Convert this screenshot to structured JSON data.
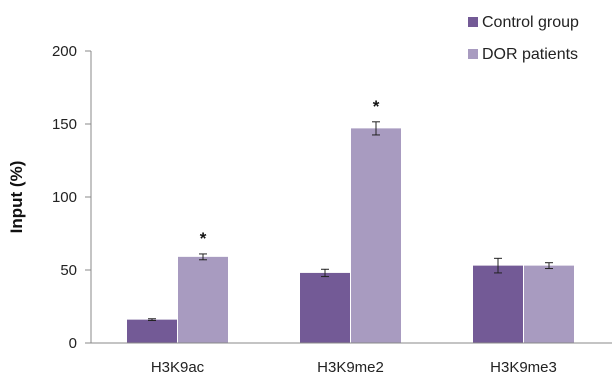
{
  "chart_data": {
    "type": "bar",
    "categories": [
      "H3K9ac",
      "H3K9me2",
      "H3K9me3"
    ],
    "series": [
      {
        "name": "Control group",
        "color": "#735a96",
        "values": [
          16,
          48,
          53
        ],
        "errors": [
          0.6,
          2.5,
          5
        ]
      },
      {
        "name": "DOR patients",
        "color": "#a89bc0",
        "values": [
          59,
          147,
          53
        ],
        "errors": [
          2,
          4.5,
          2
        ]
      }
    ],
    "significance": [
      {
        "category": 0,
        "series": 1,
        "label": "*"
      },
      {
        "category": 1,
        "series": 1,
        "label": "*"
      }
    ],
    "ylabel": "Input (%)",
    "xlabel": "",
    "ylim": [
      0,
      200
    ],
    "yticks": [
      0,
      50,
      100,
      150,
      200
    ],
    "legend_position": "top-right",
    "grid": false
  }
}
